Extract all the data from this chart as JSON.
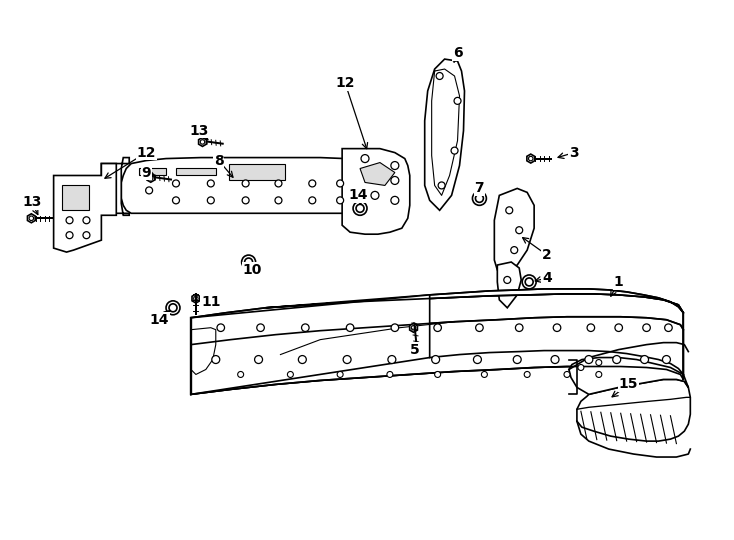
{
  "background_color": "#ffffff",
  "line_color": "#000000",
  "lw": 1.2,
  "figsize": [
    7.34,
    5.4
  ],
  "dpi": 100
}
